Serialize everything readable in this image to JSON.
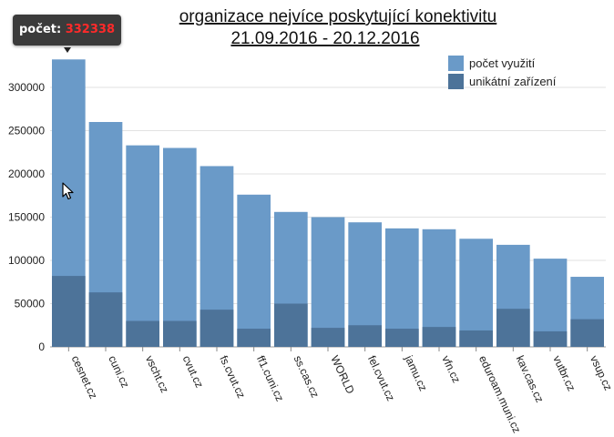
{
  "chart_data": {
    "type": "bar",
    "title": "organizace nejvíce poskytující konektivitu",
    "subtitle": "21.09.2016 - 20.12.2016",
    "categories": [
      "cesnet.cz",
      "cuni.cz",
      "vscht.cz",
      "cvut.cz",
      "fs.cvut.cz",
      "ff1.cuni.cz",
      "ss.cas.cz",
      "WORLD",
      "fel.cvut.cz",
      "jamu.cz",
      "vfn.cz",
      "eduroam.muni.cz",
      "kav.cas.cz",
      "vutbr.cz",
      "vsup.cz"
    ],
    "series": [
      {
        "name": "počet využití",
        "color": "#6a9ac8",
        "values": [
          332338,
          260000,
          233000,
          230000,
          209000,
          176000,
          156000,
          150000,
          144000,
          137000,
          136000,
          125000,
          118000,
          102000,
          81000
        ]
      },
      {
        "name": "unikátní zařízení",
        "color": "#4d7399",
        "values": [
          82000,
          63000,
          30000,
          30000,
          43000,
          21000,
          50000,
          22000,
          25000,
          21000,
          23000,
          19000,
          44000,
          18000,
          32000
        ]
      }
    ],
    "ylim": [
      0,
      340000
    ],
    "yticks": [
      0,
      50000,
      100000,
      150000,
      200000,
      250000,
      300000
    ],
    "grid": true,
    "legend_position": "top-right"
  },
  "tooltip": {
    "label": "počet:",
    "value": "332338"
  },
  "icons": {
    "cursor": "arrow-cursor-icon"
  }
}
